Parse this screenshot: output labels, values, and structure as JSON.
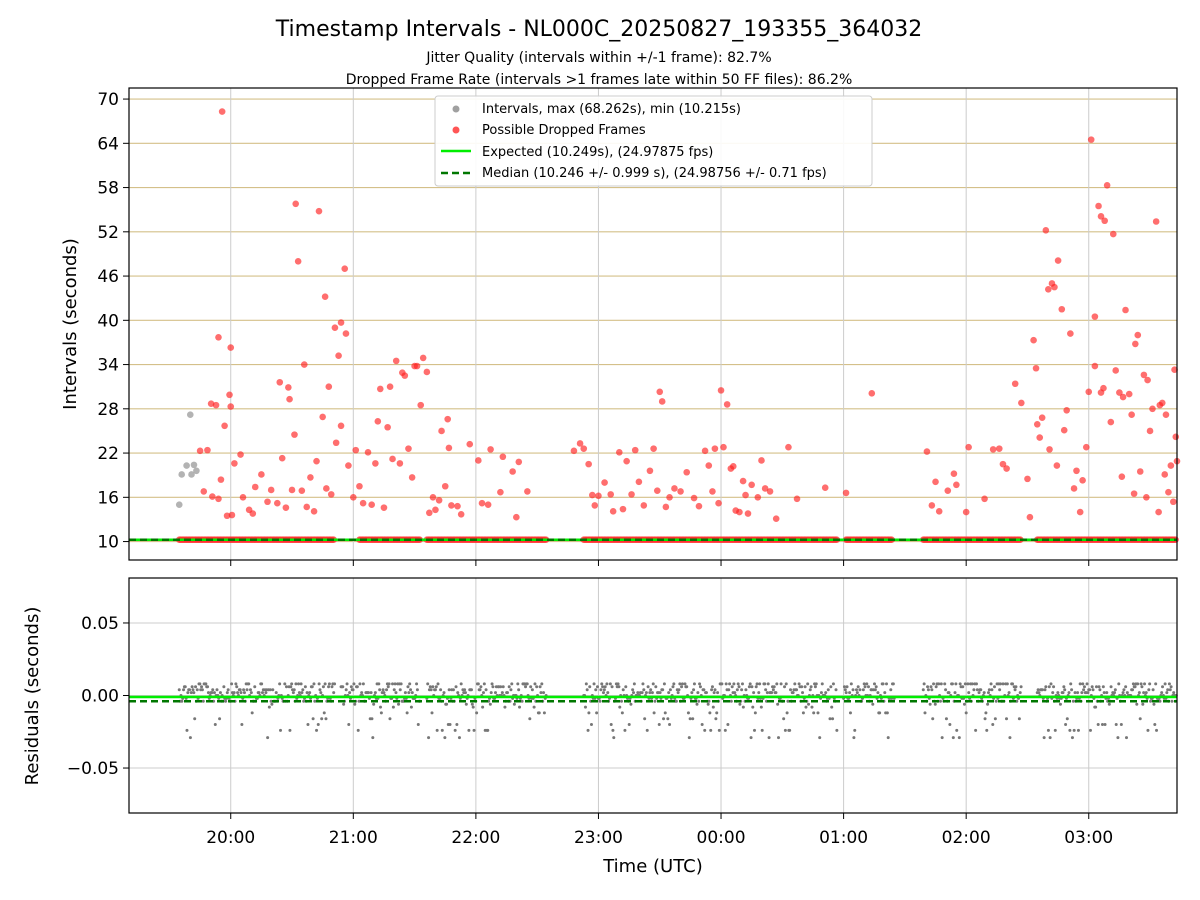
{
  "chart_data": [
    {
      "panel": "intervals",
      "type": "scatter",
      "title": "Timestamp Intervals - NL000C_20250827_193355_364032",
      "subtitles": [
        "Jitter Quality (intervals within +/-1 frame): 82.7%",
        "Dropped Frame Rate (intervals >1 frames late within 50 FF files): 86.2%"
      ],
      "xlabel": "",
      "ylabel": "Intervals (seconds)",
      "ylim": [
        7.5,
        71.5
      ],
      "yticks": [
        10,
        16,
        22,
        28,
        34,
        40,
        46,
        52,
        58,
        64,
        70
      ],
      "x_ticks": [
        "20:00",
        "21:00",
        "22:00",
        "23:00",
        "00:00",
        "01:00",
        "02:00",
        "03:00"
      ],
      "xlim_hours": [
        19.17,
        27.72
      ],
      "grid": true,
      "legend_position": "top-center",
      "legend": [
        {
          "label": "Intervals, max (68.262s), min (10.215s)",
          "kind": "marker",
          "color": "#a0a0a0"
        },
        {
          "label": "Possible Dropped Frames",
          "kind": "marker",
          "color": "#ff5555"
        },
        {
          "label": "Expected (10.249s), (24.97875 fps)",
          "kind": "line",
          "color": "#00ee00",
          "dashed": false
        },
        {
          "label": "Median (10.246 +/- 0.999 s), (24.98756 +/- 0.71 fps)",
          "kind": "line",
          "color": "#007700",
          "dashed": true
        }
      ],
      "expected_interval": 10.249,
      "median_interval": 10.246,
      "baseline_segments": [
        [
          19.58,
          20.85
        ],
        [
          21.05,
          21.55
        ],
        [
          21.6,
          22.58
        ],
        [
          22.88,
          24.95
        ],
        [
          25.02,
          25.4
        ],
        [
          25.65,
          26.45
        ],
        [
          26.58,
          27.72
        ]
      ],
      "gray_points": [
        [
          19.58,
          15.0
        ],
        [
          19.6,
          19.1
        ],
        [
          19.64,
          20.3
        ],
        [
          19.67,
          27.2
        ],
        [
          19.68,
          19.1
        ],
        [
          19.7,
          20.4
        ],
        [
          19.72,
          19.6
        ]
      ],
      "dropped_points": [
        [
          19.93,
          68.3
        ],
        [
          19.9,
          37.7
        ],
        [
          20.0,
          36.3
        ],
        [
          20.53,
          55.8
        ],
        [
          20.55,
          48.0
        ],
        [
          20.72,
          54.8
        ],
        [
          20.77,
          43.2
        ],
        [
          20.93,
          47.0
        ],
        [
          20.85,
          39.0
        ],
        [
          20.9,
          39.7
        ],
        [
          20.94,
          38.2
        ],
        [
          20.88,
          35.2
        ],
        [
          20.6,
          34.0
        ],
        [
          20.8,
          31.0
        ],
        [
          20.4,
          31.6
        ],
        [
          20.47,
          30.9
        ],
        [
          20.48,
          29.3
        ],
        [
          19.84,
          28.7
        ],
        [
          19.88,
          28.5
        ],
        [
          19.99,
          29.9
        ],
        [
          20.0,
          28.3
        ],
        [
          21.35,
          34.5
        ],
        [
          21.5,
          33.8
        ],
        [
          21.52,
          33.8
        ],
        [
          21.57,
          34.9
        ],
        [
          21.6,
          33.0
        ],
        [
          21.42,
          32.5
        ],
        [
          21.4,
          32.9
        ],
        [
          21.3,
          31.0
        ],
        [
          21.22,
          30.7
        ],
        [
          21.55,
          28.5
        ],
        [
          21.77,
          26.6
        ],
        [
          22.12,
          22.5
        ],
        [
          21.95,
          23.2
        ],
        [
          22.02,
          21.0
        ],
        [
          21.75,
          17.5
        ],
        [
          21.8,
          14.9
        ],
        [
          21.85,
          14.8
        ],
        [
          21.65,
          16.0
        ],
        [
          21.7,
          15.6
        ],
        [
          21.88,
          13.7
        ],
        [
          22.05,
          15.2
        ],
        [
          22.1,
          15.0
        ],
        [
          22.2,
          16.7
        ],
        [
          22.33,
          13.3
        ],
        [
          22.35,
          20.8
        ],
        [
          22.42,
          16.8
        ],
        [
          22.22,
          21.5
        ],
        [
          22.3,
          19.5
        ],
        [
          19.75,
          22.3
        ],
        [
          19.78,
          16.8
        ],
        [
          19.81,
          22.4
        ],
        [
          19.85,
          16.1
        ],
        [
          19.9,
          15.8
        ],
        [
          19.92,
          18.4
        ],
        [
          19.95,
          25.7
        ],
        [
          19.97,
          13.5
        ],
        [
          20.01,
          13.6
        ],
        [
          20.03,
          20.6
        ],
        [
          20.08,
          21.8
        ],
        [
          20.1,
          16.0
        ],
        [
          20.15,
          14.3
        ],
        [
          20.18,
          13.8
        ],
        [
          20.2,
          17.4
        ],
        [
          20.25,
          19.1
        ],
        [
          20.3,
          15.4
        ],
        [
          20.33,
          17.0
        ],
        [
          20.38,
          15.2
        ],
        [
          20.42,
          21.3
        ],
        [
          20.45,
          14.6
        ],
        [
          20.5,
          17.0
        ],
        [
          20.52,
          24.5
        ],
        [
          20.58,
          16.9
        ],
        [
          20.62,
          14.7
        ],
        [
          20.65,
          18.7
        ],
        [
          20.68,
          14.1
        ],
        [
          20.7,
          20.9
        ],
        [
          20.75,
          26.9
        ],
        [
          20.78,
          17.2
        ],
        [
          20.82,
          16.4
        ],
        [
          20.86,
          23.4
        ],
        [
          20.9,
          25.7
        ],
        [
          20.96,
          20.3
        ],
        [
          21.0,
          16.0
        ],
        [
          21.02,
          22.4
        ],
        [
          21.05,
          17.5
        ],
        [
          21.08,
          15.2
        ],
        [
          21.12,
          22.1
        ],
        [
          21.15,
          15.0
        ],
        [
          21.18,
          20.6
        ],
        [
          21.2,
          26.3
        ],
        [
          21.25,
          14.6
        ],
        [
          21.28,
          25.5
        ],
        [
          21.32,
          21.2
        ],
        [
          21.38,
          20.6
        ],
        [
          21.45,
          22.6
        ],
        [
          21.48,
          18.7
        ],
        [
          21.62,
          13.9
        ],
        [
          21.67,
          14.3
        ],
        [
          21.72,
          25.0
        ],
        [
          21.78,
          22.7
        ],
        [
          22.8,
          22.3
        ],
        [
          22.85,
          23.3
        ],
        [
          22.88,
          22.6
        ],
        [
          22.92,
          20.5
        ],
        [
          22.95,
          16.3
        ],
        [
          22.97,
          14.9
        ],
        [
          23.0,
          16.2
        ],
        [
          23.05,
          18.0
        ],
        [
          23.1,
          16.4
        ],
        [
          23.12,
          14.1
        ],
        [
          23.17,
          22.1
        ],
        [
          23.2,
          14.4
        ],
        [
          23.23,
          20.9
        ],
        [
          23.27,
          16.4
        ],
        [
          23.3,
          22.4
        ],
        [
          23.33,
          18.1
        ],
        [
          23.37,
          14.9
        ],
        [
          23.42,
          19.6
        ],
        [
          23.45,
          22.6
        ],
        [
          23.48,
          16.9
        ],
        [
          23.5,
          30.3
        ],
        [
          23.52,
          29.0
        ],
        [
          23.55,
          14.7
        ],
        [
          23.58,
          16.0
        ],
        [
          23.62,
          17.2
        ],
        [
          23.67,
          16.8
        ],
        [
          23.72,
          19.4
        ],
        [
          23.78,
          15.9
        ],
        [
          23.82,
          14.8
        ],
        [
          23.87,
          22.3
        ],
        [
          23.9,
          20.3
        ],
        [
          23.93,
          16.8
        ],
        [
          23.95,
          22.6
        ],
        [
          23.98,
          15.2
        ],
        [
          24.0,
          30.5
        ],
        [
          24.02,
          22.8
        ],
        [
          24.05,
          28.6
        ],
        [
          24.08,
          19.9
        ],
        [
          24.1,
          20.2
        ],
        [
          24.12,
          14.2
        ],
        [
          24.15,
          14.0
        ],
        [
          24.18,
          18.2
        ],
        [
          24.2,
          16.3
        ],
        [
          24.22,
          13.8
        ],
        [
          24.25,
          17.7
        ],
        [
          24.3,
          16.0
        ],
        [
          24.33,
          21.0
        ],
        [
          24.36,
          17.2
        ],
        [
          24.4,
          16.8
        ],
        [
          24.45,
          13.1
        ],
        [
          24.55,
          22.8
        ],
        [
          24.62,
          15.8
        ],
        [
          24.85,
          17.3
        ],
        [
          25.02,
          16.6
        ],
        [
          25.23,
          30.1
        ],
        [
          25.68,
          22.2
        ],
        [
          25.72,
          14.9
        ],
        [
          25.75,
          18.1
        ],
        [
          25.78,
          14.1
        ],
        [
          25.85,
          16.9
        ],
        [
          25.9,
          19.2
        ],
        [
          25.92,
          17.7
        ],
        [
          26.0,
          14.0
        ],
        [
          26.02,
          22.8
        ],
        [
          26.15,
          15.8
        ],
        [
          26.22,
          22.5
        ],
        [
          26.27,
          22.6
        ],
        [
          26.3,
          20.5
        ],
        [
          26.33,
          19.9
        ],
        [
          26.4,
          31.4
        ],
        [
          26.45,
          28.8
        ],
        [
          26.5,
          18.5
        ],
        [
          26.52,
          13.3
        ],
        [
          26.55,
          37.3
        ],
        [
          26.57,
          33.5
        ],
        [
          26.58,
          25.9
        ],
        [
          26.6,
          24.1
        ],
        [
          26.62,
          26.8
        ],
        [
          26.65,
          52.2
        ],
        [
          26.67,
          44.2
        ],
        [
          26.7,
          45.0
        ],
        [
          26.72,
          44.5
        ],
        [
          26.75,
          48.1
        ],
        [
          26.78,
          41.5
        ],
        [
          26.8,
          25.1
        ],
        [
          26.82,
          27.8
        ],
        [
          26.85,
          38.2
        ],
        [
          26.9,
          19.6
        ],
        [
          26.93,
          14.0
        ],
        [
          26.98,
          22.8
        ],
        [
          27.0,
          30.3
        ],
        [
          27.02,
          64.5
        ],
        [
          27.05,
          40.5
        ],
        [
          27.08,
          55.5
        ],
        [
          27.1,
          54.1
        ],
        [
          27.13,
          53.5
        ],
        [
          27.15,
          58.3
        ],
        [
          27.2,
          51.7
        ],
        [
          27.22,
          33.2
        ],
        [
          27.25,
          30.2
        ],
        [
          27.28,
          29.6
        ],
        [
          27.3,
          41.4
        ],
        [
          27.33,
          30.0
        ],
        [
          27.35,
          27.2
        ],
        [
          27.38,
          36.8
        ],
        [
          27.4,
          38.0
        ],
        [
          27.45,
          32.6
        ],
        [
          27.48,
          31.9
        ],
        [
          27.5,
          25.0
        ],
        [
          27.52,
          28.0
        ],
        [
          27.55,
          53.4
        ],
        [
          27.58,
          28.5
        ],
        [
          27.6,
          28.8
        ],
        [
          27.63,
          27.2
        ],
        [
          27.67,
          20.3
        ],
        [
          27.7,
          33.3
        ],
        [
          27.71,
          24.2
        ],
        [
          27.72,
          20.9
        ],
        [
          27.1,
          30.2
        ],
        [
          27.12,
          30.8
        ],
        [
          27.05,
          33.8
        ],
        [
          26.68,
          22.5
        ],
        [
          26.74,
          20.3
        ],
        [
          26.88,
          17.2
        ],
        [
          26.95,
          18.3
        ],
        [
          27.18,
          26.2
        ],
        [
          27.27,
          18.8
        ],
        [
          27.37,
          16.5
        ],
        [
          27.42,
          19.5
        ],
        [
          27.47,
          16.0
        ],
        [
          27.57,
          14.0
        ],
        [
          27.62,
          19.1
        ],
        [
          27.65,
          16.7
        ],
        [
          27.69,
          15.4
        ]
      ]
    },
    {
      "panel": "residuals",
      "type": "scatter",
      "title": "",
      "xlabel": "Time (UTC)",
      "ylabel": "Residuals (seconds)",
      "ylim": [
        -0.081,
        0.081
      ],
      "yticks": [
        {
          "value": 0.05,
          "label": "0.05"
        },
        {
          "value": 0.0,
          "label": "0.00"
        },
        {
          "value": -0.05,
          "label": "−0.05"
        }
      ],
      "x_ticks": [
        "20:00",
        "21:00",
        "22:00",
        "23:00",
        "00:00",
        "01:00",
        "02:00",
        "03:00"
      ],
      "xlim_hours": [
        19.17,
        27.72
      ],
      "grid": true,
      "point_color": "#777777",
      "expected_residual": -0.001,
      "median_residual": -0.004,
      "residual_bands": [
        0.008,
        0.006,
        0.004,
        0.002,
        0.0,
        -0.002,
        -0.004,
        -0.006,
        -0.008,
        -0.012,
        -0.016,
        -0.02,
        -0.024,
        -0.029
      ],
      "data_ranges_hours": [
        [
          19.58,
          20.85
        ],
        [
          20.9,
          21.55
        ],
        [
          21.6,
          22.58
        ],
        [
          22.88,
          24.95
        ],
        [
          25.0,
          25.42
        ],
        [
          25.65,
          26.45
        ],
        [
          26.58,
          27.72
        ]
      ]
    }
  ]
}
